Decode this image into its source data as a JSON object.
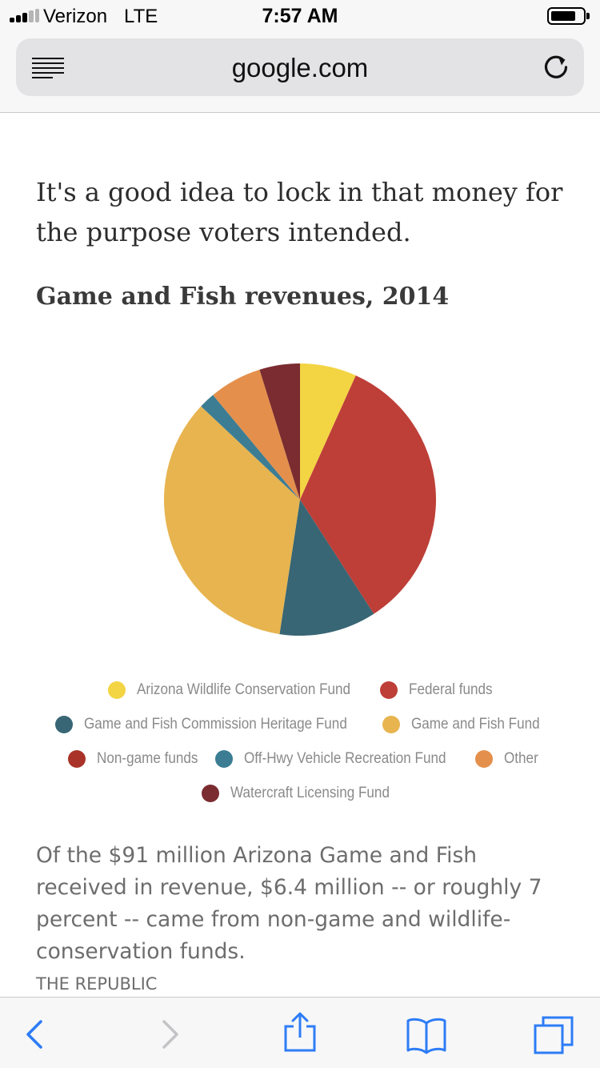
{
  "status_bar": {
    "carrier": "Verizon",
    "network": "LTE",
    "time": "7:57 AM",
    "battery_level": 0.75
  },
  "browser": {
    "url": "google.com",
    "icons": {
      "reader": "reader-view-icon",
      "reload": "reload-icon",
      "back": "back-arrow-icon",
      "forward": "forward-arrow-icon",
      "share": "share-icon",
      "bookmarks": "bookmarks-icon",
      "tabs": "tabs-icon"
    },
    "accent_color": "#2d7cf6"
  },
  "article": {
    "lead": "It's a good idea to lock in that money for the purpose voters intended.",
    "chart_title": "Game and Fish revenues, 2014",
    "body": "Of the $91 million Arizona Game and Fish received in revenue, $6.4 million -- or roughly 7 percent -- came from non-game and wildlife-conservation funds.",
    "source": "THE REPUBLIC"
  },
  "chart_data": {
    "type": "pie",
    "title": "Game and Fish revenues, 2014",
    "slices": [
      {
        "label": "Arizona Wildlife Conservation Fund",
        "value": 7.0,
        "color": "#f3d443"
      },
      {
        "label": "Federal funds",
        "value": 35.5,
        "color": "#be3f38"
      },
      {
        "label": "Game and Fish Commission Heritage Fund",
        "value": 12.0,
        "color": "#386674"
      },
      {
        "label": "Game and Fish Fund",
        "value": 36.0,
        "color": "#e7b44f"
      },
      {
        "label": "Non-game funds",
        "value": 0,
        "color": "#a93328"
      },
      {
        "label": "Off-Hwy Vehicle Recreation Fund",
        "value": 2.0,
        "color": "#3c7d94"
      },
      {
        "label": "Other",
        "value": 6.5,
        "color": "#e4904c"
      },
      {
        "label": "Watercraft Licensing Fund",
        "value": 5.0,
        "color": "#7b2c30"
      }
    ],
    "legend_rows": [
      [
        0,
        1
      ],
      [
        2,
        3
      ],
      [
        4,
        5,
        6
      ],
      [
        7
      ]
    ],
    "legend_placement": "bottom"
  }
}
